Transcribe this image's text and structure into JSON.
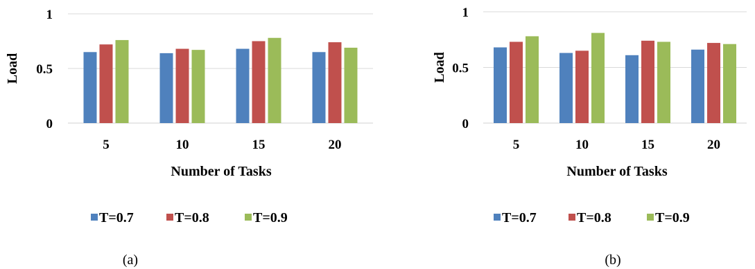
{
  "chart_data": [
    {
      "type": "bar",
      "caption": "(a)",
      "xlabel": "Number of Tasks",
      "ylabel": "Load",
      "categories": [
        "5",
        "10",
        "15",
        "20"
      ],
      "yticks": [
        "0",
        "0.5",
        "1"
      ],
      "ylim": [
        0,
        1
      ],
      "grid": true,
      "legend_position": "bottom",
      "series": [
        {
          "name": "T=0.7",
          "color": "#4f81bd",
          "values": [
            0.65,
            0.64,
            0.68,
            0.65
          ]
        },
        {
          "name": "T=0.8",
          "color": "#c0504d",
          "values": [
            0.72,
            0.68,
            0.75,
            0.74
          ]
        },
        {
          "name": "T=0.9",
          "color": "#9bbb59",
          "values": [
            0.76,
            0.67,
            0.78,
            0.69
          ]
        }
      ]
    },
    {
      "type": "bar",
      "caption": "(b)",
      "xlabel": "Number of Tasks",
      "ylabel": "Load",
      "categories": [
        "5",
        "10",
        "15",
        "20"
      ],
      "yticks": [
        "0",
        "0.5",
        "1"
      ],
      "ylim": [
        0,
        1
      ],
      "grid": true,
      "legend_position": "bottom",
      "series": [
        {
          "name": "T=0.7",
          "color": "#4f81bd",
          "values": [
            0.68,
            0.63,
            0.61,
            0.66
          ]
        },
        {
          "name": "T=0.8",
          "color": "#c0504d",
          "values": [
            0.73,
            0.65,
            0.74,
            0.72
          ]
        },
        {
          "name": "T=0.9",
          "color": "#9bbb59",
          "values": [
            0.78,
            0.81,
            0.73,
            0.71
          ]
        }
      ]
    }
  ]
}
